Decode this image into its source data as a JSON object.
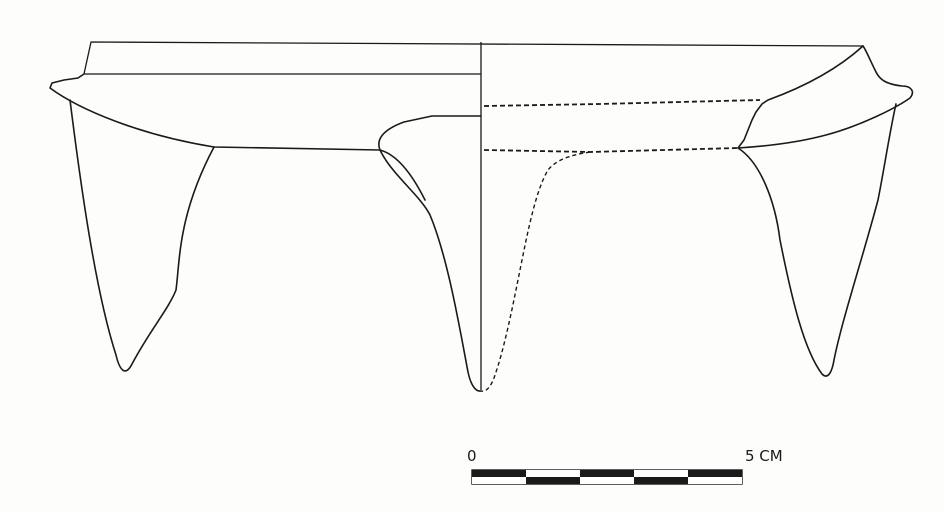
{
  "figure": {
    "subject": "tripod-vessel-profile-drawing"
  },
  "scale_bar": {
    "start_label": "0",
    "end_label": "5 CM",
    "segments": 5,
    "colors": {
      "dark": "#1a1a1a",
      "light": "#ffffff"
    }
  }
}
